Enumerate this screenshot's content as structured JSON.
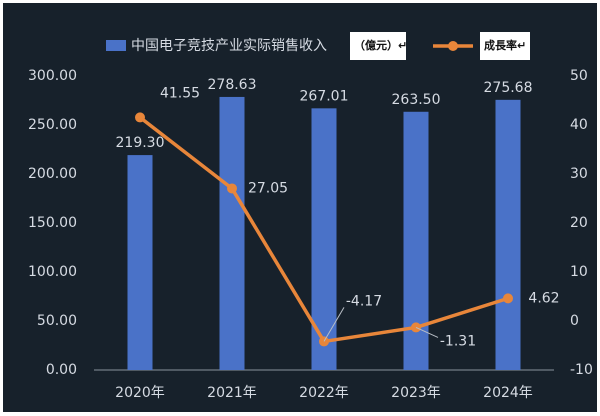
{
  "chart_data": {
    "type": "bar",
    "categories": [
      "2020年",
      "2021年",
      "2022年",
      "2023年",
      "2024年"
    ],
    "series": [
      {
        "name": "中国电子竞技产业实际销售收入",
        "type": "bar",
        "axis": "left",
        "values": [
          219.3,
          278.63,
          267.01,
          263.5,
          275.68
        ],
        "labels": [
          "219.30",
          "278.63",
          "267.01",
          "263.50",
          "275.68"
        ],
        "color": "#4a72c8"
      },
      {
        "name": "成長率",
        "type": "line",
        "axis": "right",
        "values": [
          41.55,
          27.05,
          -4.17,
          -1.31,
          4.62
        ],
        "labels": [
          "41.55",
          "27.05",
          "-4.17",
          "-1.31",
          "4.62"
        ],
        "color": "#e8863a"
      }
    ],
    "left_axis": {
      "min": 0,
      "max": 300,
      "ticks": [
        "0.00",
        "50.00",
        "100.00",
        "150.00",
        "200.00",
        "250.00",
        "300.00"
      ]
    },
    "right_axis": {
      "min": -10,
      "max": 50,
      "ticks": [
        "-10",
        "0",
        "10",
        "20",
        "30",
        "40",
        "50"
      ]
    },
    "legend_unit_box": "（億元）↵",
    "legend_rate_box": "成長率↵",
    "grid": false,
    "legend_position": "top",
    "colors": {
      "background": "#17212b",
      "text": "#d6dbe3",
      "bar": "#4a72c8",
      "line": "#e8863a"
    }
  }
}
